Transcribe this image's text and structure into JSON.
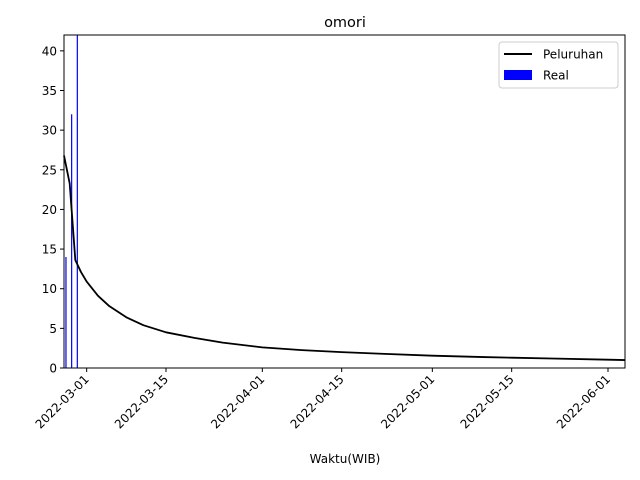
{
  "chart_data": {
    "type": "bar",
    "title": "omori",
    "xlabel": "Waktu(WIB)",
    "ylabel": "",
    "ylim": [
      0,
      42
    ],
    "xlim": [
      "2022-02-25",
      "2022-06-04"
    ],
    "yticks": [
      0,
      5,
      10,
      15,
      20,
      25,
      30,
      35,
      40
    ],
    "xticks": [
      "2022-03-01",
      "2022-03-15",
      "2022-04-01",
      "2022-04-15",
      "2022-05-01",
      "2022-05-15",
      "2022-06-01"
    ],
    "grid": false,
    "legend_position": "top-right",
    "series": [
      {
        "name": "Peluruhan",
        "type": "line",
        "color": "#000000",
        "x": [
          "2022-02-25",
          "2022-02-26",
          "2022-02-27",
          "2022-02-28",
          "2022-03-01",
          "2022-03-03",
          "2022-03-05",
          "2022-03-08",
          "2022-03-11",
          "2022-03-15",
          "2022-03-20",
          "2022-03-25",
          "2022-04-01",
          "2022-04-08",
          "2022-04-15",
          "2022-04-22",
          "2022-05-01",
          "2022-05-10",
          "2022-05-15",
          "2022-05-22",
          "2022-06-01",
          "2022-06-04"
        ],
        "values": [
          26.8,
          23.3,
          13.6,
          12.1,
          10.9,
          9.1,
          7.8,
          6.4,
          5.4,
          4.5,
          3.8,
          3.2,
          2.6,
          2.25,
          2.0,
          1.8,
          1.55,
          1.38,
          1.3,
          1.2,
          1.05,
          1.0
        ]
      },
      {
        "name": "Real",
        "type": "bar",
        "color": "#0000ff",
        "x": [
          "2022-02-25",
          "2022-02-26",
          "2022-02-27"
        ],
        "values": [
          14,
          32,
          42
        ]
      }
    ]
  }
}
